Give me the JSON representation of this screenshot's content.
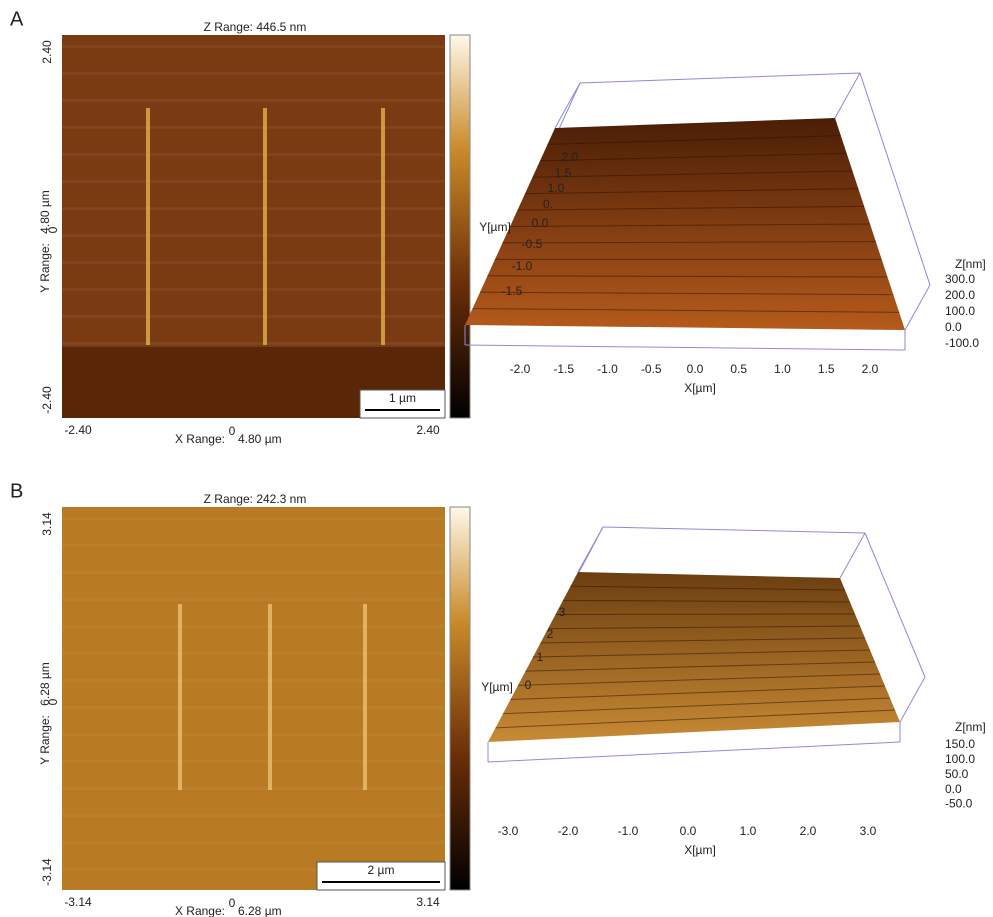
{
  "panels": [
    {
      "label": "A",
      "z_range": "Z Range:  446.5 nm",
      "y_axis": {
        "max": "2.40",
        "min": "-2.40",
        "zero": "0",
        "range_label": "Y Range:",
        "range": "4.80 µm"
      },
      "x_axis": {
        "max": "2.40",
        "min": "-2.40",
        "zero": "0",
        "range_label": "X Range:",
        "range": "4.80 µm"
      },
      "scale_bar": "1 µm",
      "plot3d": {
        "x_label": "X[µm]",
        "y_label": "Y[µm]",
        "z_label": "Z[nm]",
        "x_ticks": [
          "-2.0",
          "-1.5",
          "-1.0",
          "-0.5",
          "0.0",
          "0.5",
          "1.0",
          "1.5",
          "2.0"
        ],
        "y_ticks": [
          "2.0",
          "1.5",
          "1.0",
          "0.",
          "0.0",
          "-0.5",
          "-1.0",
          "-1.5"
        ],
        "z_ticks": [
          "300.0",
          "200.0",
          "100.0",
          "0.0",
          "-100.0"
        ]
      }
    },
    {
      "label": "B",
      "z_range": "Z Range:  242.3 nm",
      "y_axis": {
        "max": "3.14",
        "min": "-3.14",
        "zero": "0",
        "range_label": "Y Range:",
        "range": "6.28 µm"
      },
      "x_axis": {
        "max": "3.14",
        "min": "-3.14",
        "zero": "0",
        "range_label": "X Range:",
        "range": "6.28 µm"
      },
      "scale_bar": "2 µm",
      "plot3d": {
        "x_label": "X[µm]",
        "y_label": "Y[µm]",
        "z_label": "Z[nm]",
        "x_ticks": [
          "-3.0",
          "-2.0",
          "-1.0",
          "0.0",
          "1.0",
          "2.0",
          "3.0"
        ],
        "y_ticks": [
          "3",
          "2",
          "1",
          "0"
        ],
        "z_ticks": [
          "150.0",
          "100.0",
          "50.0",
          "0.0",
          "-50.0"
        ]
      }
    }
  ]
}
